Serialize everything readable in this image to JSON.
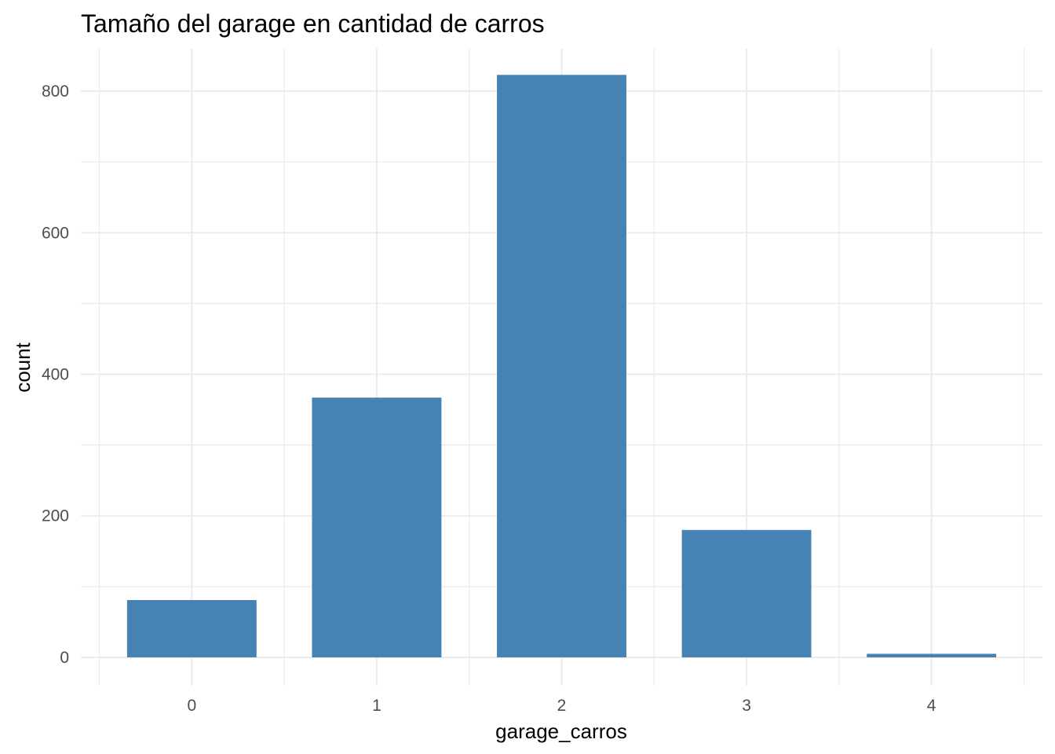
{
  "chart_data": {
    "type": "bar",
    "title": "Tamaño del garage en cantidad de carros",
    "xlabel": "garage_carros",
    "ylabel": "count",
    "categories": [
      "0",
      "1",
      "2",
      "3",
      "4"
    ],
    "values": [
      81,
      367,
      823,
      180,
      5
    ],
    "ylim": [
      -40,
      860
    ],
    "yticks": [
      0,
      200,
      400,
      600,
      800
    ],
    "grid": true,
    "bar_color": "#4682b4",
    "background": "#ffffff",
    "grid_color": "#ebebeb"
  }
}
